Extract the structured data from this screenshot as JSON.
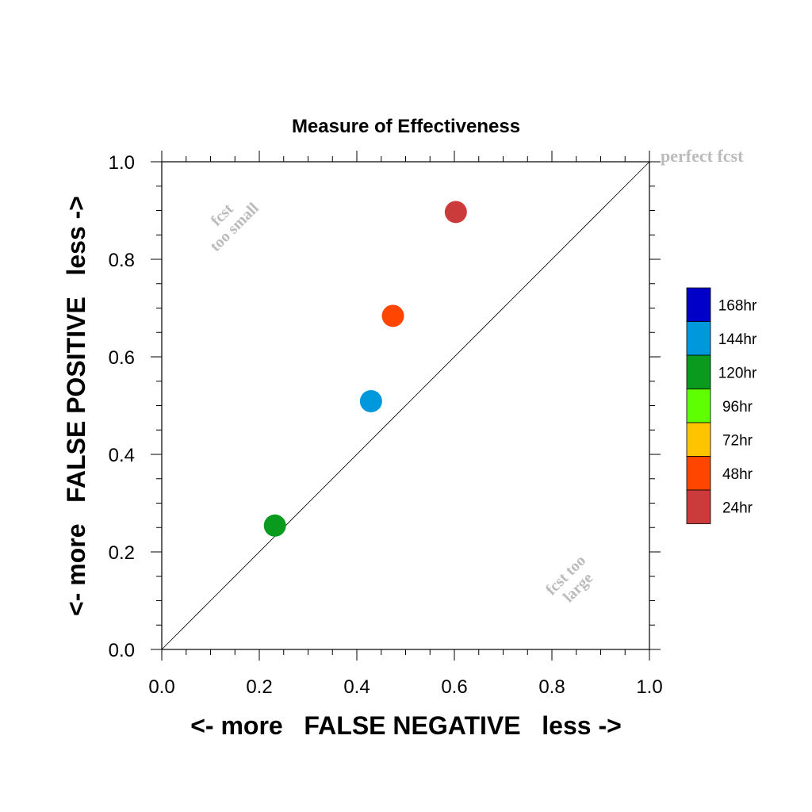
{
  "chart_data": {
    "type": "scatter",
    "title": "Measure of Effectiveness",
    "xlabel": "<- more   FALSE NEGATIVE   less ->",
    "ylabel": "<- more   FALSE POSITIVE   less ->",
    "xlim": [
      0.0,
      1.0
    ],
    "ylim": [
      0.0,
      1.0
    ],
    "x_ticks": [
      "0.0",
      "0.2",
      "0.4",
      "0.6",
      "0.8",
      "1.0"
    ],
    "y_ticks": [
      "0.0",
      "0.2",
      "0.4",
      "0.6",
      "0.8",
      "1.0"
    ],
    "grid": false,
    "reference_line": {
      "from": [
        0,
        0
      ],
      "to": [
        1,
        1
      ]
    },
    "points": [
      {
        "label": "24hr",
        "x": 0.603,
        "y": 0.897,
        "color": "#cc3b3b"
      },
      {
        "label": "48hr",
        "x": 0.474,
        "y": 0.684,
        "color": "#ff4500"
      },
      {
        "label": "144hr",
        "x": 0.429,
        "y": 0.509,
        "color": "#0098dc"
      },
      {
        "label": "120hr",
        "x": 0.232,
        "y": 0.254,
        "color": "#0a9a1e"
      }
    ],
    "annotations": {
      "perfect": "perfect fcst",
      "too_small": [
        "fcst",
        "too small"
      ],
      "too_large": [
        "fcst too",
        "large"
      ]
    },
    "legend": {
      "placement": "right",
      "entries": [
        {
          "label": "168hr",
          "color": "#0000c8"
        },
        {
          "label": "144hr",
          "color": "#0098dc"
        },
        {
          "label": "120hr",
          "color": "#0a9a1e"
        },
        {
          "label": "96hr",
          "color": "#5eff00"
        },
        {
          "label": "72hr",
          "color": "#ffc400"
        },
        {
          "label": "48hr",
          "color": "#ff4500"
        },
        {
          "label": "24hr",
          "color": "#cc3b3b"
        }
      ]
    }
  }
}
